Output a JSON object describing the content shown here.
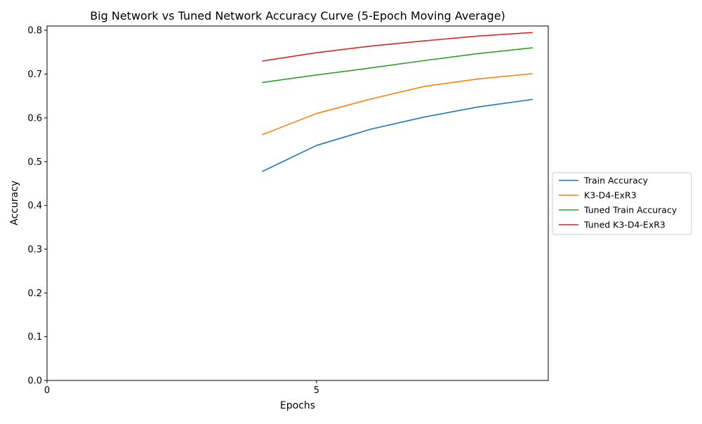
{
  "chart_data": {
    "type": "line",
    "title": "Big Network vs Tuned Network Accuracy Curve (5-Epoch Moving Average)",
    "xlabel": "Epochs",
    "ylabel": "Accuracy",
    "xlim": [
      0,
      9.3
    ],
    "ylim": [
      0,
      0.81
    ],
    "xticks": [
      0,
      5
    ],
    "yticks": [
      0.0,
      0.1,
      0.2,
      0.3,
      0.4,
      0.5,
      0.6,
      0.7,
      0.8
    ],
    "grid": false,
    "legend_position": "outside-right",
    "x": [
      4,
      5,
      6,
      7,
      8,
      9
    ],
    "series": [
      {
        "name": "Train Accuracy",
        "color": "#1f77b4",
        "values": [
          0.478,
          0.537,
          0.574,
          0.602,
          0.625,
          0.642
        ]
      },
      {
        "name": "K3-D4-ExR3",
        "color": "#ff7f0e",
        "values": [
          0.562,
          0.61,
          0.643,
          0.672,
          0.689,
          0.701
        ]
      },
      {
        "name": "Tuned Train Accuracy",
        "color": "#2ca02c",
        "values": [
          0.681,
          0.698,
          0.714,
          0.731,
          0.747,
          0.76
        ]
      },
      {
        "name": "Tuned K3-D4-ExR3",
        "color": "#d62728",
        "values": [
          0.73,
          0.749,
          0.764,
          0.776,
          0.787,
          0.795
        ]
      }
    ]
  }
}
